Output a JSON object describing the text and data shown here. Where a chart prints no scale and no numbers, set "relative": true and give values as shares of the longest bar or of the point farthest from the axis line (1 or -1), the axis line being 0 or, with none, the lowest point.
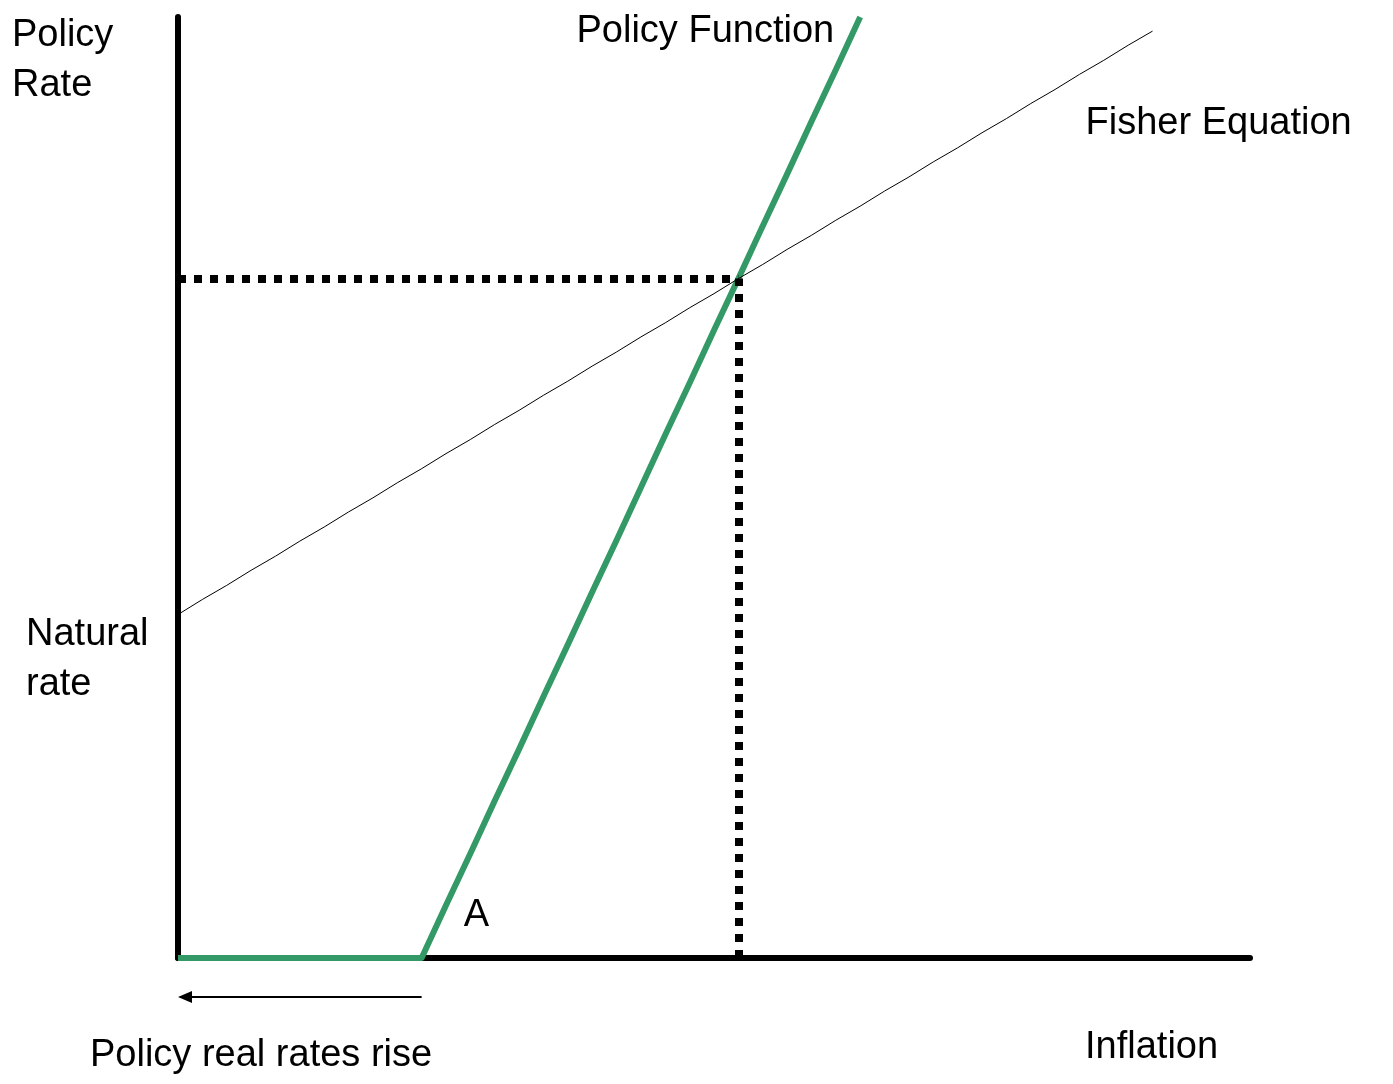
{
  "chart_data": {
    "type": "line",
    "relative": true,
    "xlabel": "Inflation",
    "ylabel": "Policy Rate",
    "categories": [
      null,
      null,
      null,
      null,
      null,
      null,
      null,
      null,
      null,
      null,
      null,
      null,
      null,
      null,
      null,
      null,
      null,
      null,
      null,
      null,
      null,
      null,
      null,
      null,
      null,
      null,
      null,
      null,
      null,
      null,
      null,
      null,
      null,
      null,
      null,
      null,
      null,
      null,
      null,
      null,
      null,
      null,
      null,
      null,
      null
    ],
    "series": [
      {
        "name": "Policy Function",
        "color": "#339966",
        "values": [
          0,
          0,
          0,
          0,
          0,
          0,
          0,
          0,
          0,
          0,
          0,
          0.056,
          0.111,
          0.167,
          0.222,
          0.278,
          0.333,
          0.389,
          0.444,
          0.5,
          0.556,
          0.611,
          0.667,
          0.722,
          0.778,
          0.833,
          0.889,
          0.944,
          1.0,
          null,
          null,
          null,
          null,
          null,
          null,
          null,
          null,
          null,
          null,
          null,
          null,
          null,
          null,
          null,
          null
        ]
      },
      {
        "name": "Fisher Equation",
        "color": "#000000",
        "values": [
          0.365,
          0.381,
          0.396,
          0.412,
          0.427,
          0.443,
          0.458,
          0.474,
          0.489,
          0.505,
          0.52,
          0.536,
          0.551,
          0.567,
          0.582,
          0.598,
          0.613,
          0.629,
          0.644,
          0.66,
          0.675,
          0.691,
          0.706,
          0.722,
          0.737,
          0.753,
          0.768,
          0.784,
          0.799,
          0.815,
          0.83,
          0.846,
          0.861,
          0.877,
          0.892,
          0.908,
          0.923,
          0.939,
          0.954,
          0.97,
          0.985,
          null,
          null,
          null,
          null
        ]
      }
    ],
    "ref_lines": [
      {
        "axis": "y",
        "value": 0.722,
        "color": "#000000",
        "line_style": "dotted"
      }
    ],
    "annotations": [
      "Natural rate",
      "A",
      "Policy real rates rise"
    ]
  }
}
